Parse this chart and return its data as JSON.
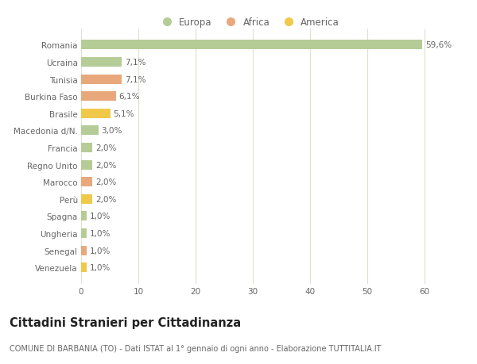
{
  "countries": [
    "Romania",
    "Ucraina",
    "Tunisia",
    "Burkina Faso",
    "Brasile",
    "Macedonia d/N.",
    "Francia",
    "Regno Unito",
    "Marocco",
    "Perù",
    "Spagna",
    "Ungheria",
    "Senegal",
    "Venezuela"
  ],
  "values": [
    59.6,
    7.1,
    7.1,
    6.1,
    5.1,
    3.0,
    2.0,
    2.0,
    2.0,
    2.0,
    1.0,
    1.0,
    1.0,
    1.0
  ],
  "labels": [
    "59,6%",
    "7,1%",
    "7,1%",
    "6,1%",
    "5,1%",
    "3,0%",
    "2,0%",
    "2,0%",
    "2,0%",
    "2,0%",
    "1,0%",
    "1,0%",
    "1,0%",
    "1,0%"
  ],
  "continents": [
    "Europa",
    "Europa",
    "Africa",
    "Africa",
    "America",
    "Europa",
    "Europa",
    "Europa",
    "Africa",
    "America",
    "Europa",
    "Europa",
    "Africa",
    "America"
  ],
  "colors": {
    "Europa": "#b5cc96",
    "Africa": "#e8a87c",
    "America": "#f0c84a"
  },
  "xlim": [
    0,
    65
  ],
  "xticks": [
    0,
    10,
    20,
    30,
    40,
    50,
    60
  ],
  "background_color": "#ffffff",
  "grid_color": "#e0e0d0",
  "title": "Cittadini Stranieri per Cittadinanza",
  "subtitle": "COMUNE DI BARBANIA (TO) - Dati ISTAT al 1° gennaio di ogni anno - Elaborazione TUTTITALIA.IT",
  "bar_height": 0.55,
  "label_fontsize": 7.5,
  "tick_fontsize": 7.5,
  "title_fontsize": 10.5,
  "subtitle_fontsize": 7.0,
  "legend_entries": [
    "Europa",
    "Africa",
    "America"
  ]
}
